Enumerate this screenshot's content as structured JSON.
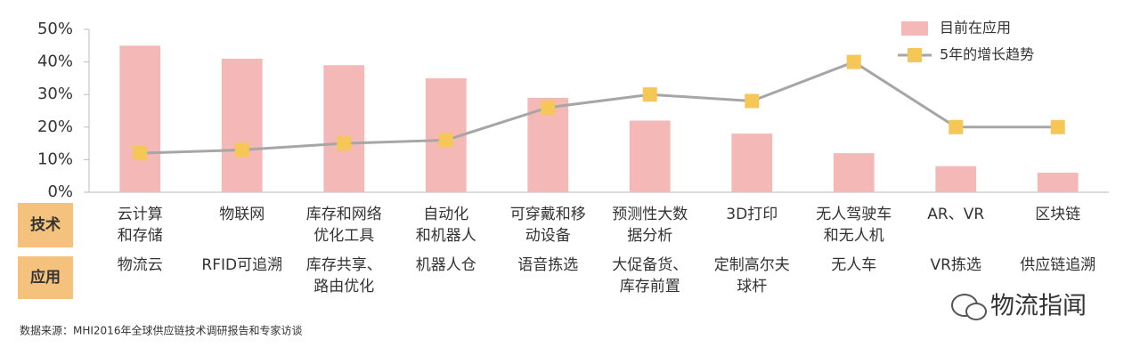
{
  "chart_data": {
    "type": "bar_line",
    "categories": [
      [
        "云计算",
        "和存储"
      ],
      [
        "物联网"
      ],
      [
        "库存和网络",
        "优化工具"
      ],
      [
        "自动化",
        "和机器人"
      ],
      [
        "可穿戴和移",
        "动设备"
      ],
      [
        "预测性大数",
        "据分析"
      ],
      [
        "3D打印"
      ],
      [
        "无人驾驶车",
        "和无人机"
      ],
      [
        "AR、VR"
      ],
      [
        "区块链"
      ]
    ],
    "applications": [
      [
        "物流云"
      ],
      [
        "RFID可追溯"
      ],
      [
        "库存共享、",
        "路由优化"
      ],
      [
        "机器人仓"
      ],
      [
        "语音拣选"
      ],
      [
        "大促备货、",
        "库存前置"
      ],
      [
        "定制高尔夫",
        "球杆"
      ],
      [
        "无人车"
      ],
      [
        "VR拣选"
      ],
      [
        "供应链追溯"
      ]
    ],
    "row_labels": [
      "技术",
      "应用"
    ],
    "series": [
      {
        "name": "目前在应用",
        "type": "bar",
        "color": "#f4b8b6",
        "values": [
          45,
          41,
          39,
          35,
          29,
          22,
          18,
          12,
          8,
          6
        ]
      },
      {
        "name": "5年的增长趋势",
        "type": "line",
        "color": "#a6a6a6",
        "marker_color": "#f6c657",
        "values": [
          12,
          13,
          15,
          16,
          26,
          30,
          28,
          40,
          20,
          20
        ]
      }
    ],
    "ylim": [
      0,
      50
    ],
    "yticks": [
      {
        "value": 0,
        "label": "0%"
      },
      {
        "value": 10,
        "label": "10%"
      },
      {
        "value": 20,
        "label": "20%"
      },
      {
        "value": 30,
        "label": "30%"
      },
      {
        "value": 40,
        "label": "40%"
      },
      {
        "value": 50,
        "label": "50%"
      }
    ],
    "legend": "top-right",
    "source": "数据来源：MHI2016年全球供应链技术调研报告和专家访谈",
    "logo": "物流指闻"
  }
}
